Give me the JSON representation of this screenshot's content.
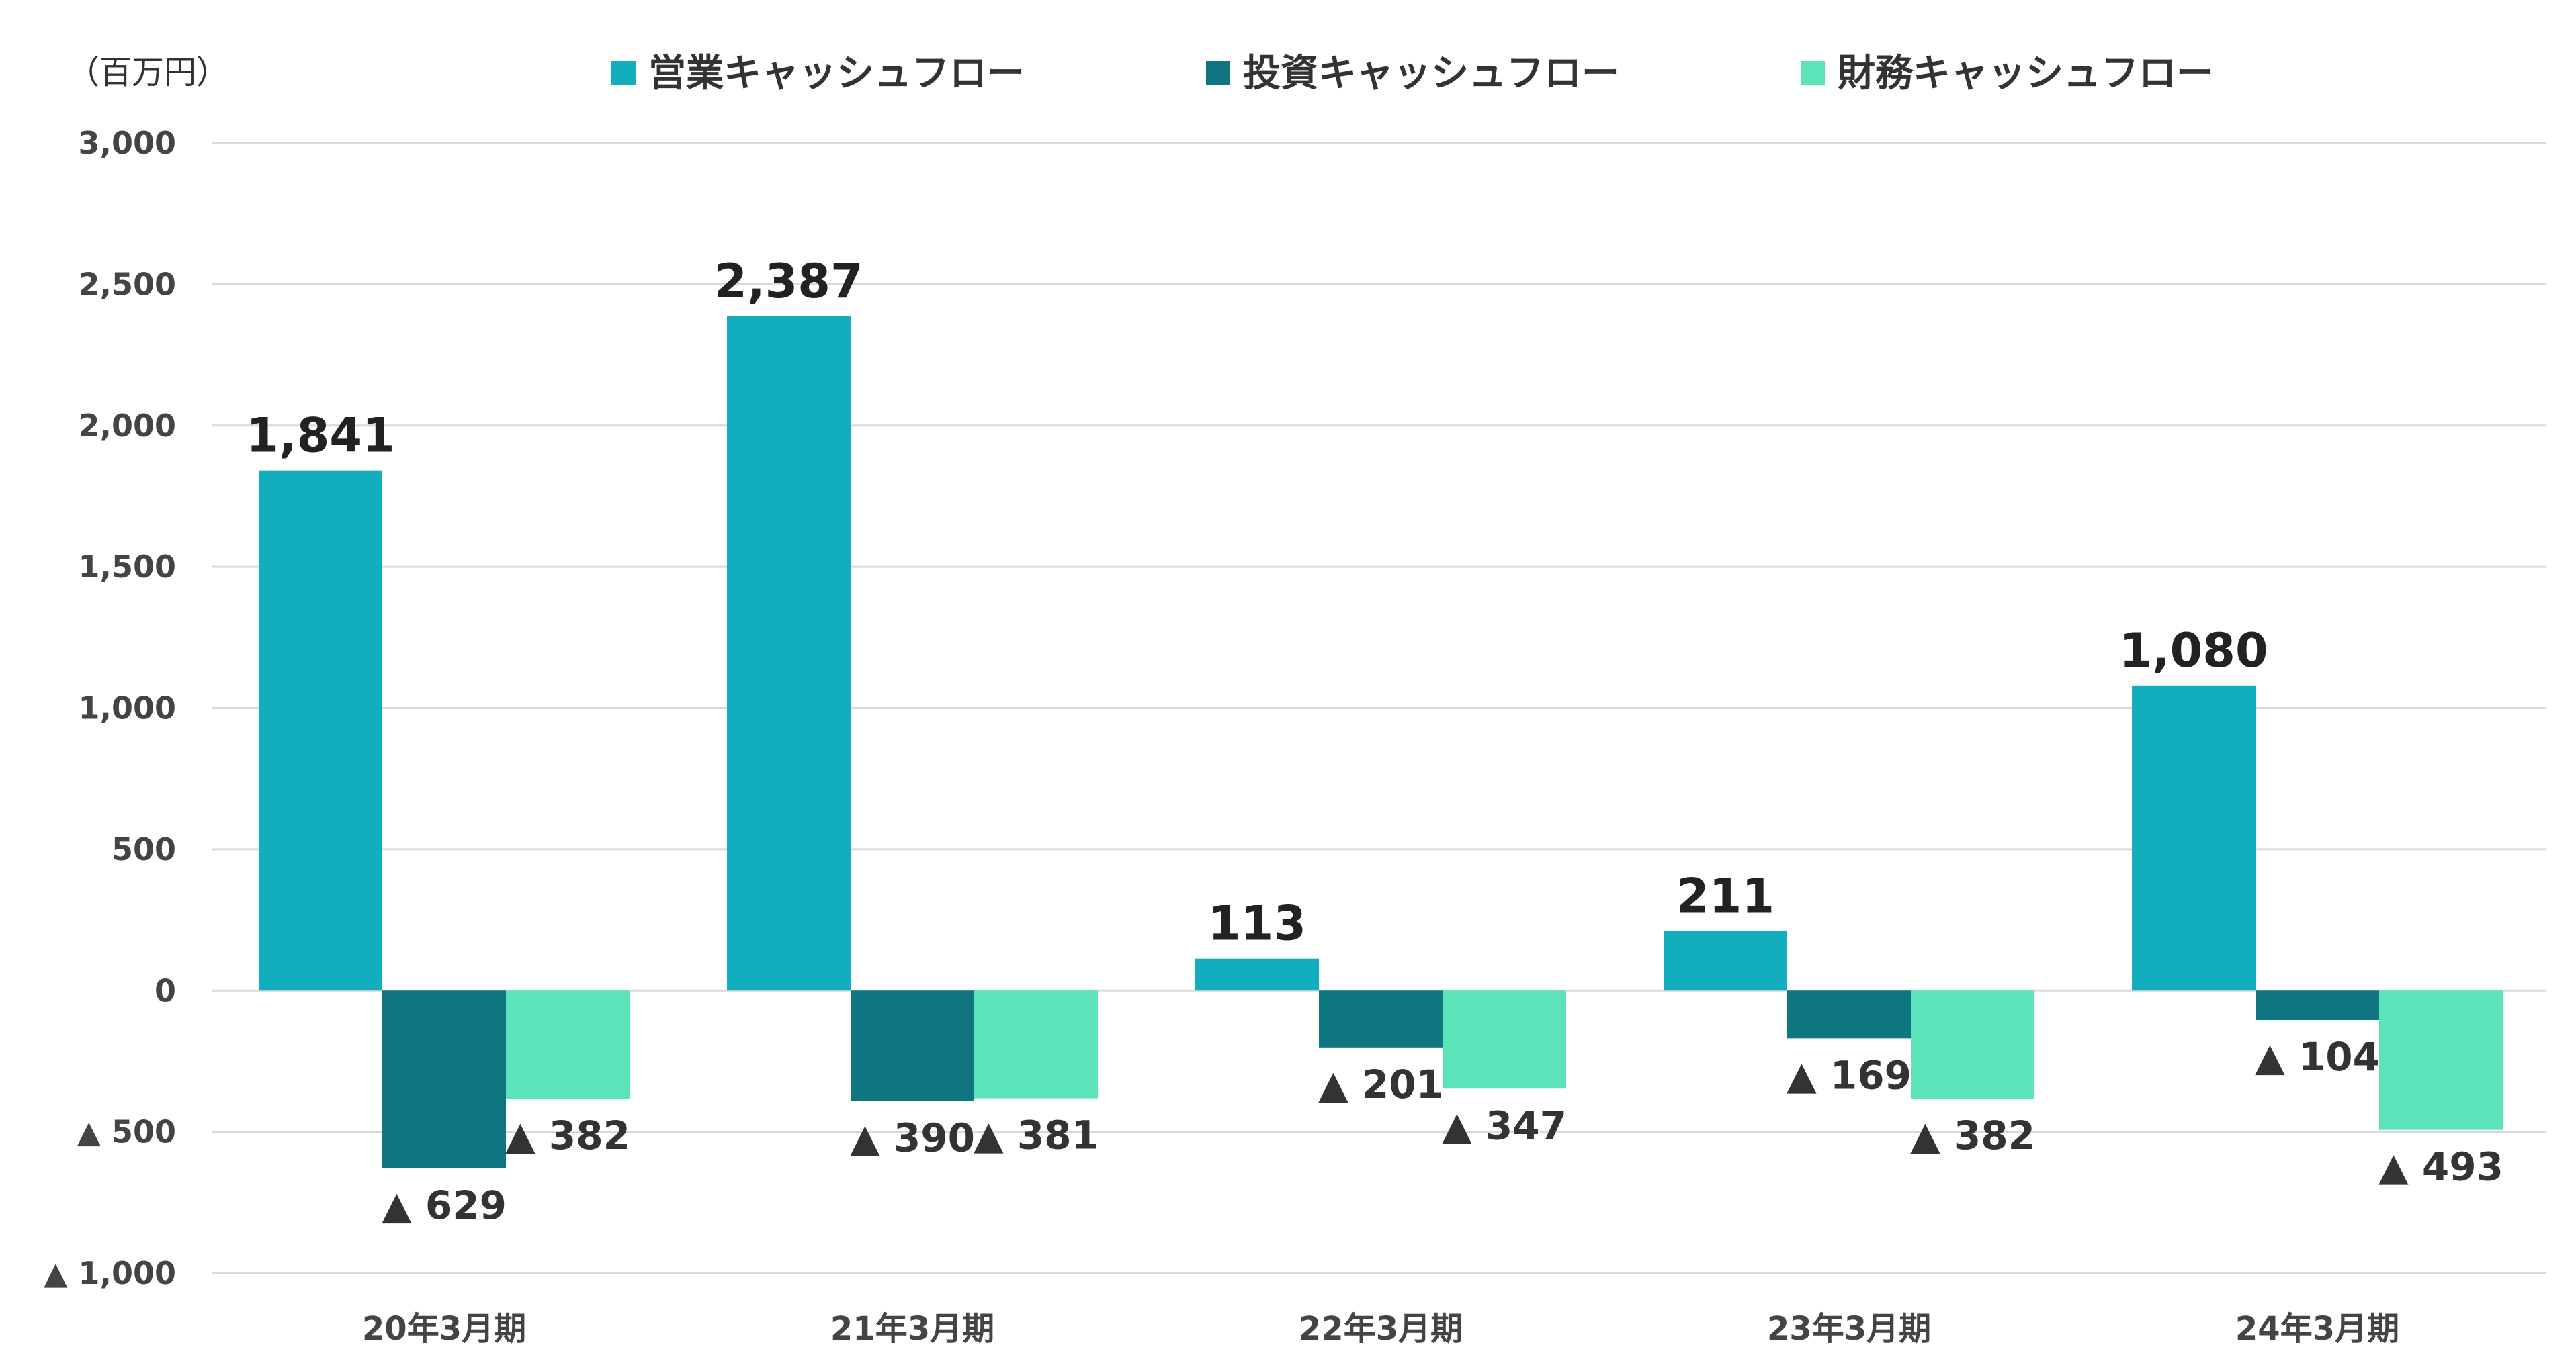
{
  "chart_data": {
    "type": "bar",
    "unit_label": "（百万円）",
    "categories": [
      "20年3月期",
      "21年3月期",
      "22年3月期",
      "23年3月期",
      "24年3月期"
    ],
    "series": [
      {
        "name": "営業キャッシュフロー",
        "color": "#13AEBD",
        "values": [
          1841,
          2387,
          113,
          211,
          1080
        ],
        "labels": [
          "1,841",
          "2,387",
          "113",
          "211",
          "1,080"
        ]
      },
      {
        "name": "投資キャッシュフロー",
        "color": "#0F7580",
        "values": [
          -629,
          -390,
          -201,
          -169,
          -104
        ],
        "labels": [
          "▲ 629",
          "▲ 390",
          "▲ 201",
          "▲ 169",
          "▲ 104"
        ]
      },
      {
        "name": "財務キャッシュフロー",
        "color": "#5DE3BA",
        "values": [
          -382,
          -381,
          -347,
          -382,
          -493
        ],
        "labels": [
          "▲ 382",
          "▲ 381",
          "▲ 347",
          "▲ 382",
          "▲ 493"
        ]
      }
    ],
    "ylim": [
      -1000,
      3000
    ],
    "yticks": [
      3000,
      2500,
      2000,
      1500,
      1000,
      500,
      0,
      -500,
      -1000
    ],
    "ytick_labels": [
      "3,000",
      "2,500",
      "2,000",
      "1,500",
      "1,000",
      "500",
      "0",
      "▲ 500",
      "▲ 1,000"
    ],
    "grid": true,
    "legend_position": "top"
  }
}
